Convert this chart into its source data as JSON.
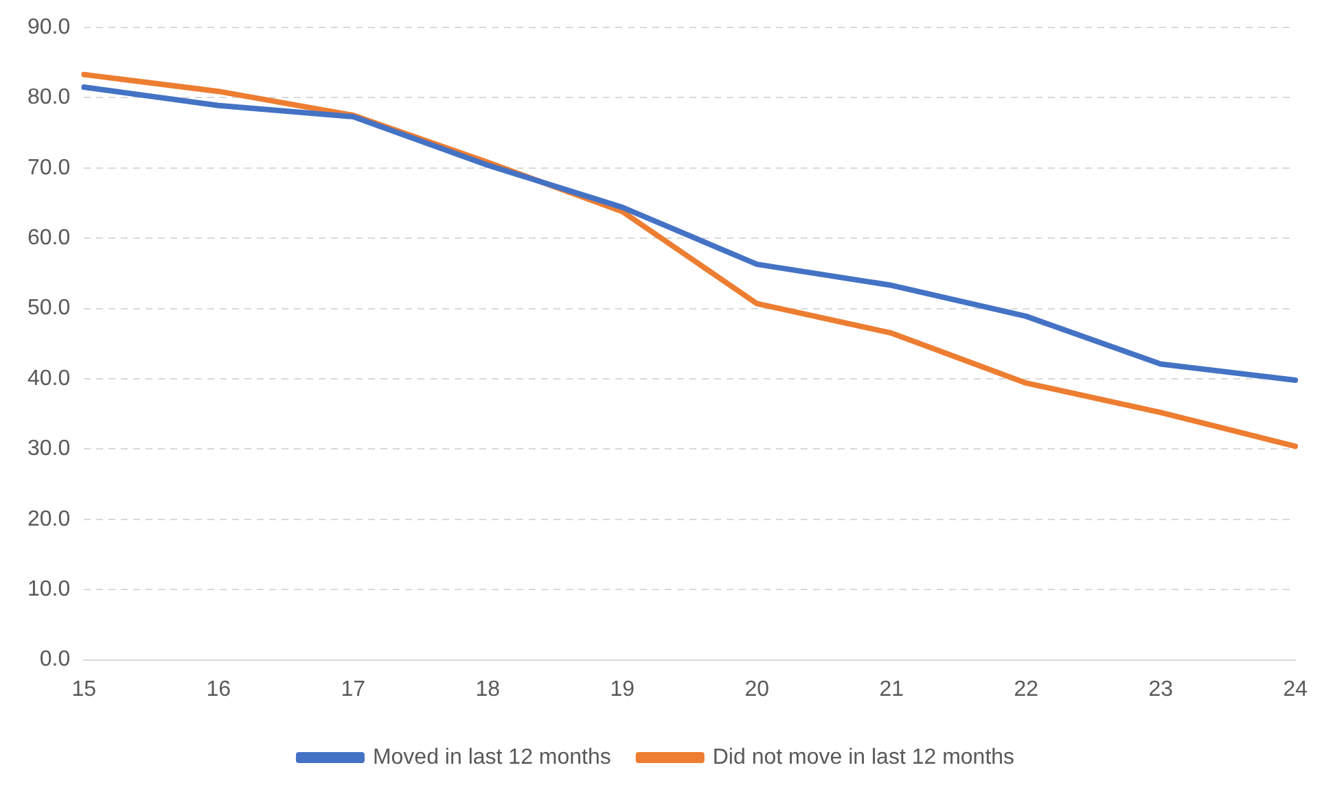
{
  "chart_data": {
    "type": "line",
    "categories": [
      "15",
      "16",
      "17",
      "18",
      "19",
      "20",
      "21",
      "22",
      "23",
      "24"
    ],
    "series": [
      {
        "name": "Moved in last 12 months",
        "color": "#4472c4",
        "values": [
          81.5,
          78.9,
          77.3,
          70.4,
          64.4,
          56.3,
          53.3,
          48.9,
          42.1,
          39.8
        ]
      },
      {
        "name": "Did not move in last 12 months",
        "color": "#ed7d31",
        "values": [
          83.3,
          80.9,
          77.5,
          70.8,
          63.8,
          50.7,
          46.5,
          39.4,
          35.2,
          30.4
        ]
      }
    ],
    "ylim": [
      0,
      90
    ],
    "yticks": [
      {
        "value": 0,
        "label": "0.0"
      },
      {
        "value": 10,
        "label": "10.0"
      },
      {
        "value": 20,
        "label": "20.0"
      },
      {
        "value": 30,
        "label": "30.0"
      },
      {
        "value": 40,
        "label": "40.0"
      },
      {
        "value": 50,
        "label": "50.0"
      },
      {
        "value": 60,
        "label": "60.0"
      },
      {
        "value": 70,
        "label": "70.0"
      },
      {
        "value": 80,
        "label": "80.0"
      },
      {
        "value": 90,
        "label": "90.0"
      }
    ],
    "grid": "y",
    "legend": "bottom",
    "marker": "none",
    "line_style": "solid"
  }
}
